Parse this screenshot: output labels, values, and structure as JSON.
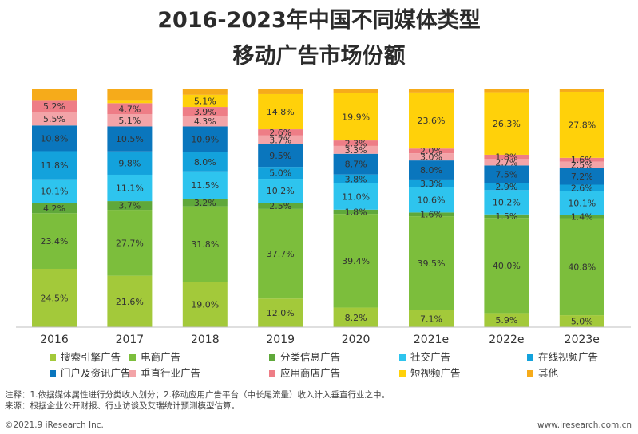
{
  "title": {
    "line1": "2016-2023年中国不同媒体类型",
    "line2": "移动广告市场份额"
  },
  "chart_data": {
    "type": "stacked_bar_100",
    "title": "2016-2023年中国不同媒体类型移动广告市场份额",
    "categories": [
      "2016",
      "2017",
      "2018",
      "2019",
      "2020",
      "2021e",
      "2022e",
      "2023e"
    ],
    "ylim": [
      0,
      100
    ],
    "unit": "%",
    "series": [
      {
        "name": "搜索引擎广告",
        "color": "#a3c93a",
        "values": [
          24.5,
          21.6,
          19.0,
          12.0,
          8.2,
          7.1,
          5.9,
          5.0
        ],
        "labels": [
          "24.5%",
          "21.6%",
          "19.0%",
          "12.0%",
          "8.2%",
          "7.1%",
          "5.9%",
          "5.0%"
        ]
      },
      {
        "name": "电商广告",
        "color": "#7cbe3c",
        "values": [
          23.4,
          27.7,
          31.8,
          37.7,
          39.4,
          39.5,
          40.0,
          40.8
        ],
        "labels": [
          "23.4%",
          "27.7%",
          "31.8%",
          "37.7%",
          "39.4%",
          "39.5%",
          "40.0%",
          "40.8%"
        ]
      },
      {
        "name": "分类信息广告",
        "color": "#5fa83a",
        "values": [
          4.2,
          3.7,
          3.2,
          2.5,
          1.8,
          1.6,
          1.5,
          1.4
        ],
        "labels": [
          "4.2%",
          "3.7%",
          "3.2%",
          "2.5%",
          "1.8%",
          "1.6%",
          "1.5%",
          "1.4%"
        ]
      },
      {
        "name": "社交广告",
        "color": "#2ec4ee",
        "values": [
          10.1,
          11.1,
          11.5,
          10.2,
          11.0,
          10.6,
          10.2,
          10.1
        ],
        "labels": [
          "10.1%",
          "11.1%",
          "11.5%",
          "10.2%",
          "11.0%",
          "10.6%",
          "10.2%",
          "10.1%"
        ]
      },
      {
        "name": "在线视频广告",
        "color": "#13a2dc",
        "values": [
          11.8,
          9.8,
          8.0,
          5.0,
          3.8,
          3.3,
          2.9,
          2.6
        ],
        "labels": [
          "11.8%",
          "9.8%",
          "8.0%",
          "5.0%",
          "3.8%",
          "3.3%",
          "2.9%",
          "2.6%"
        ]
      },
      {
        "name": "门户及资讯广告",
        "color": "#0a76bd",
        "values": [
          10.8,
          10.5,
          10.9,
          9.5,
          8.7,
          8.0,
          7.5,
          7.2
        ],
        "labels": [
          "10.8%",
          "10.5%",
          "10.9%",
          "9.5%",
          "8.7%",
          "8.0%",
          "7.5%",
          "7.2%"
        ]
      },
      {
        "name": "垂直行业广告",
        "color": "#f3a4a8",
        "values": [
          5.5,
          5.1,
          4.3,
          3.7,
          3.3,
          3.0,
          2.7,
          2.5
        ],
        "labels": [
          "5.5%",
          "5.1%",
          "4.3%",
          "3.7%",
          "3.3%",
          "3.0%",
          "2.7%",
          "2.5%"
        ]
      },
      {
        "name": "应用商店广告",
        "color": "#ee7d86",
        "values": [
          5.2,
          4.7,
          3.9,
          2.6,
          2.3,
          2.0,
          1.8,
          1.6
        ],
        "labels": [
          "5.2%",
          "4.7%",
          "3.9%",
          "2.6%",
          "2.3%",
          "2.0%",
          "1.8%",
          "1.6%"
        ]
      },
      {
        "name": "短视频广告",
        "color": "#ffd10a",
        "values": [
          0,
          1.3,
          5.1,
          14.8,
          19.9,
          23.6,
          26.3,
          27.8
        ],
        "labels": [
          "",
          "",
          "5.1%",
          "14.8%",
          "19.9%",
          "23.6%",
          "26.3%",
          "27.8%"
        ]
      },
      {
        "name": "其他",
        "color": "#f6ab1a",
        "values": [
          4.5,
          4.5,
          2.3,
          2.0,
          1.6,
          1.3,
          1.2,
          1.0
        ],
        "labels": [
          "",
          "",
          "",
          "",
          "",
          "",
          "",
          ""
        ]
      }
    ],
    "legend_position": "bottom"
  },
  "notes": {
    "line1": "注释：1.依据媒体属性进行分类收入划分；2.移动应用广告平台（中长尾流量）收入计入垂直行业之中。",
    "line2": "来源：根据企业公开财报、行业访谈及艾瑞统计预测模型估算。"
  },
  "footer": {
    "left": "©2021.9 iResearch Inc.",
    "right": "www.iresearch.com.cn"
  }
}
